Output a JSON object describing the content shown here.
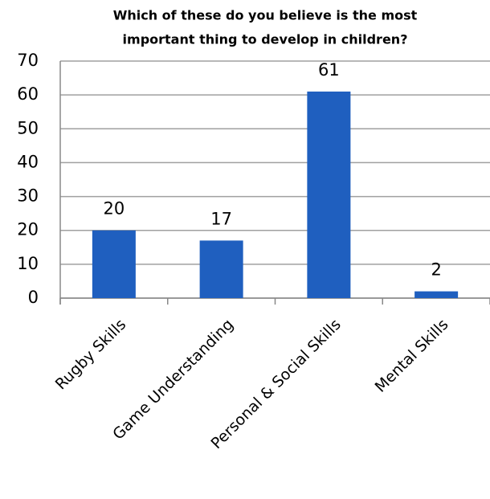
{
  "chart_data": {
    "type": "bar",
    "title": [
      "Which of these do you believe  is the most",
      "important thing to develop in children?"
    ],
    "categories": [
      "Rugby Skills",
      "Game Understanding",
      "Personal & Social Skills",
      "Mental Skills"
    ],
    "values": [
      20,
      17,
      61,
      2
    ],
    "color": "#1f5fbf",
    "ylim": [
      0,
      70
    ],
    "yticks": [
      0,
      10,
      20,
      30,
      40,
      50,
      60,
      70
    ],
    "grid": true
  }
}
